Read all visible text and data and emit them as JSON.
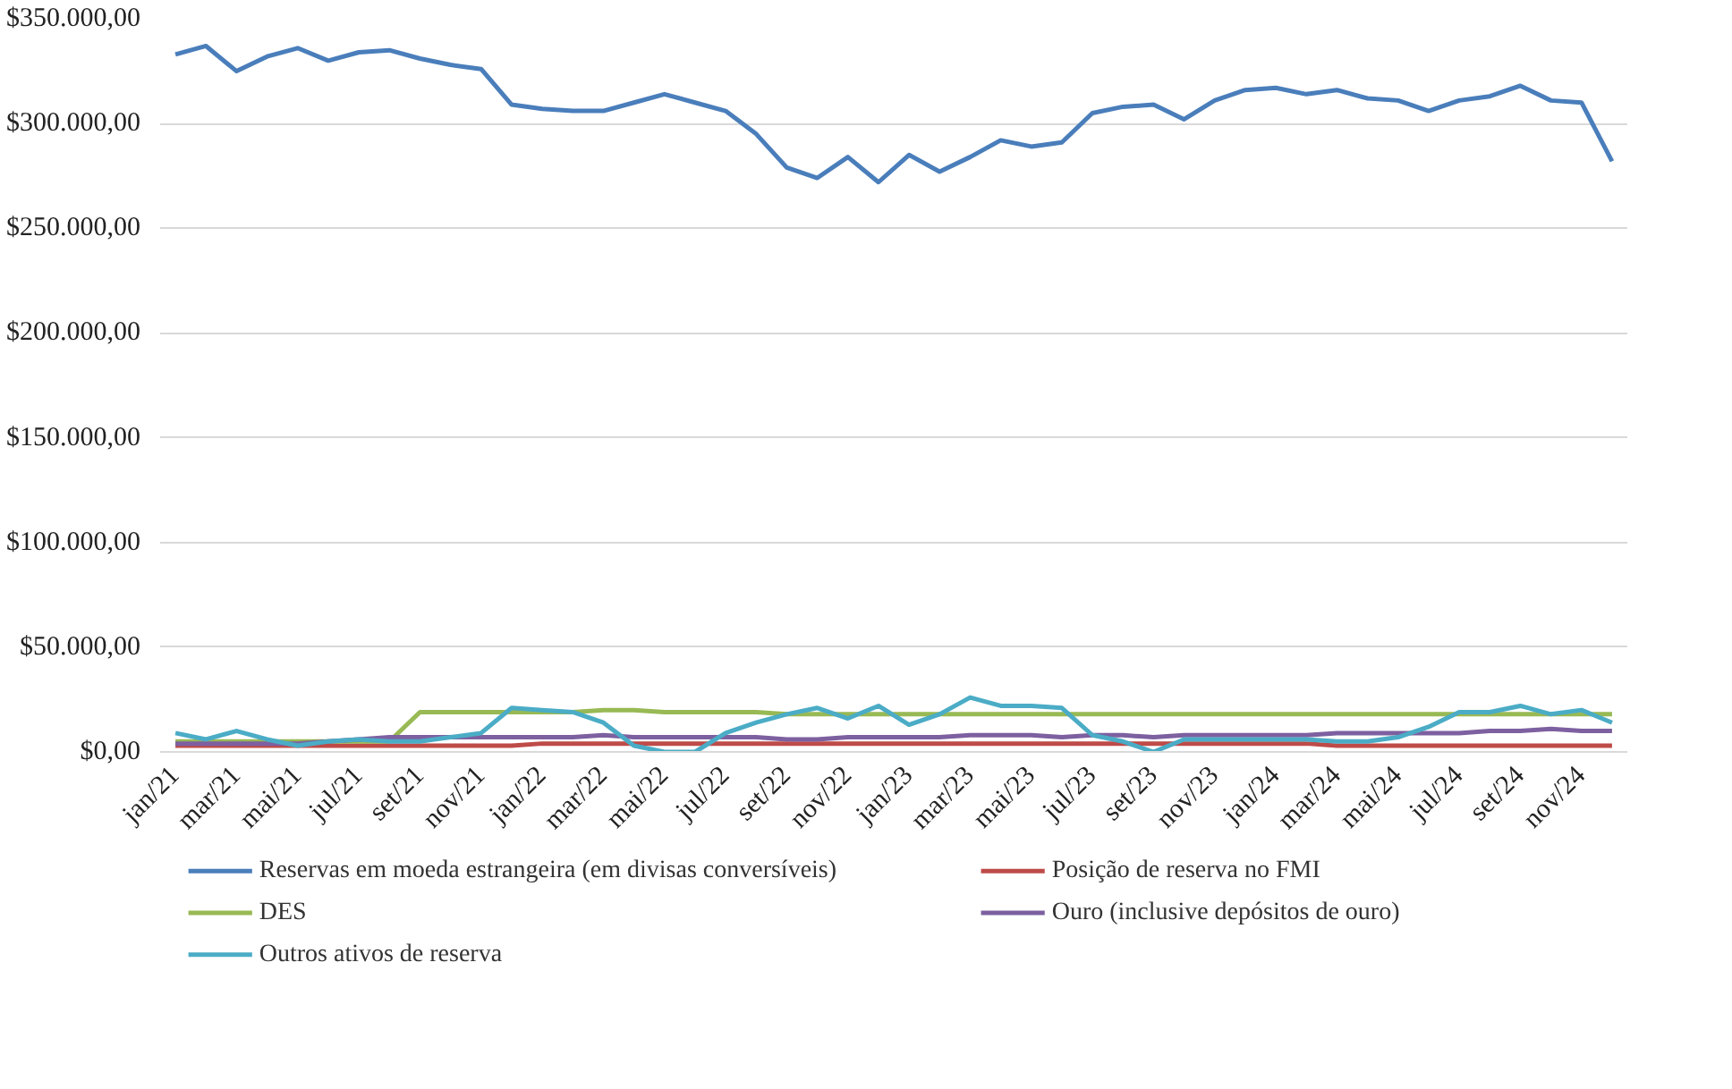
{
  "chart_data": {
    "type": "line",
    "categories": [
      "jan/21",
      null,
      "mar/21",
      null,
      "mai/21",
      null,
      "jul/21",
      null,
      "set/21",
      null,
      "nov/21",
      null,
      "jan/22",
      null,
      "mar/22",
      null,
      "mai/22",
      null,
      "jul/22",
      null,
      "set/22",
      null,
      "nov/22",
      null,
      "jan/23",
      null,
      "mar/23",
      null,
      "mai/23",
      null,
      "jul/23",
      null,
      "set/23",
      null,
      "nov/23",
      null,
      "jan/24",
      null,
      "mar/24",
      null,
      "mai/24",
      null,
      "jul/24",
      null,
      "set/24",
      null,
      "nov/24",
      null
    ],
    "ylim": [
      0,
      350000
    ],
    "yticks": [
      {
        "value": 0,
        "label": "$0,00"
      },
      {
        "value": 50000,
        "label": "$50.000,00"
      },
      {
        "value": 100000,
        "label": "$100.000,00"
      },
      {
        "value": 150000,
        "label": "$150.000,00"
      },
      {
        "value": 200000,
        "label": "$200.000,00"
      },
      {
        "value": 250000,
        "label": "$250.000,00"
      },
      {
        "value": 300000,
        "label": "$300.000,00"
      },
      {
        "value": 350000,
        "label": "$350.000,00"
      }
    ],
    "grid": "y",
    "legend": "bottom",
    "marker": "none",
    "line_style": "solid",
    "series": [
      {
        "name": "Reservas em moeda estrangeira (em divisas conversíveis)",
        "color": "#4a7ebb",
        "values": [
          333000,
          337000,
          325000,
          332000,
          336000,
          330000,
          334000,
          335000,
          331000,
          328000,
          326000,
          309000,
          307000,
          306000,
          306000,
          310000,
          314000,
          310000,
          306000,
          295000,
          279000,
          274000,
          284000,
          272000,
          285000,
          277000,
          284000,
          292000,
          289000,
          291000,
          305000,
          308000,
          309000,
          302000,
          311000,
          316000,
          317000,
          314000,
          316000,
          312000,
          311000,
          306000,
          311000,
          313000,
          318000,
          311000,
          310000,
          282000
        ]
      },
      {
        "name": "Posição de reserva no FMI",
        "color": "#be4b48",
        "values": [
          3000,
          3000,
          3000,
          3000,
          3000,
          3000,
          3000,
          3000,
          3000,
          3000,
          3000,
          3000,
          4000,
          4000,
          4000,
          4000,
          4000,
          4000,
          4000,
          4000,
          4000,
          4000,
          4000,
          4000,
          4000,
          4000,
          4000,
          4000,
          4000,
          4000,
          4000,
          4000,
          4000,
          4000,
          4000,
          4000,
          4000,
          4000,
          3000,
          3000,
          3000,
          3000,
          3000,
          3000,
          3000,
          3000,
          3000,
          3000
        ]
      },
      {
        "name": "DES",
        "color": "#98b954",
        "values": [
          5000,
          5000,
          5000,
          5000,
          5000,
          5000,
          5000,
          5000,
          19000,
          19000,
          19000,
          19000,
          19000,
          19000,
          20000,
          20000,
          19000,
          19000,
          19000,
          19000,
          18000,
          18000,
          18000,
          18000,
          18000,
          18000,
          18000,
          18000,
          18000,
          18000,
          18000,
          18000,
          18000,
          18000,
          18000,
          18000,
          18000,
          18000,
          18000,
          18000,
          18000,
          18000,
          18000,
          18000,
          18000,
          18000,
          18000,
          18000
        ]
      },
      {
        "name": "Ouro (inclusive depósitos de ouro)",
        "color": "#7d60a0",
        "values": [
          4000,
          4000,
          4000,
          4000,
          4000,
          5000,
          6000,
          7000,
          7000,
          7000,
          7000,
          7000,
          7000,
          7000,
          8000,
          7000,
          7000,
          7000,
          7000,
          7000,
          6000,
          6000,
          7000,
          7000,
          7000,
          7000,
          8000,
          8000,
          8000,
          7000,
          8000,
          8000,
          7000,
          8000,
          8000,
          8000,
          8000,
          8000,
          9000,
          9000,
          9000,
          9000,
          9000,
          10000,
          10000,
          11000,
          10000,
          10000
        ]
      },
      {
        "name": "Outros ativos de reserva",
        "color": "#4bacc6",
        "values": [
          9000,
          6000,
          10000,
          6000,
          3000,
          5000,
          6000,
          5000,
          5000,
          7000,
          9000,
          21000,
          20000,
          19000,
          14000,
          3000,
          0,
          0,
          9000,
          14000,
          18000,
          21000,
          16000,
          22000,
          13000,
          18000,
          26000,
          22000,
          22000,
          21000,
          8000,
          5000,
          0,
          6000,
          6000,
          6000,
          6000,
          6000,
          5000,
          5000,
          7000,
          12000,
          19000,
          19000,
          22000,
          18000,
          20000,
          14000
        ]
      }
    ]
  }
}
